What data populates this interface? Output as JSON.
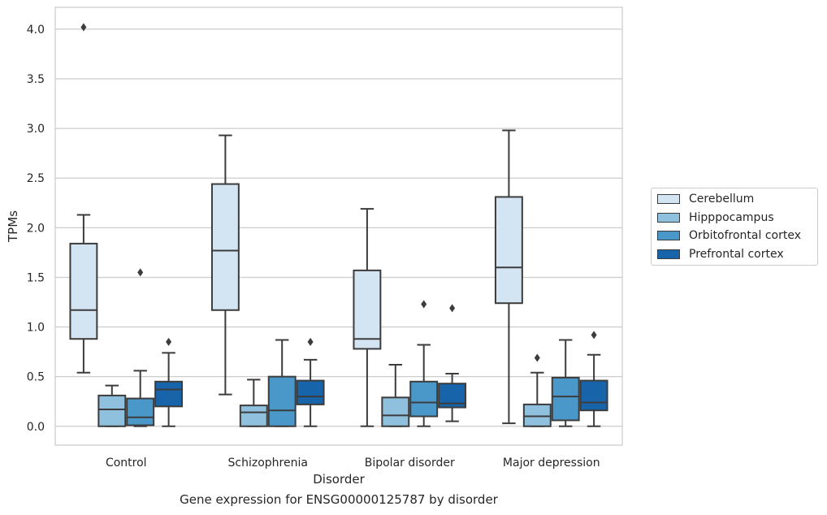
{
  "chart_data": {
    "type": "box",
    "xlabel": "Disorder",
    "ylabel": "TPMs",
    "caption": "Gene expression for ENSG00000125787 by disorder",
    "ylim": [
      -0.19,
      4.22
    ],
    "yticks": [
      "0.0",
      "0.5",
      "1.0",
      "1.5",
      "2.0",
      "2.5",
      "3.0",
      "3.5",
      "4.0"
    ],
    "grid": "horizontal",
    "legend_placement": "right",
    "categories": [
      "Control",
      "Schizophrenia",
      "Bipolar disorder",
      "Major depression"
    ],
    "series": [
      {
        "name": "Cerebellum",
        "color": "#d3e4f3",
        "boxes": [
          {
            "whislo": 0.54,
            "q1": 0.88,
            "med": 1.17,
            "q3": 1.84,
            "whishi": 2.13,
            "fliers": [
              4.02
            ]
          },
          {
            "whislo": 0.32,
            "q1": 1.17,
            "med": 1.77,
            "q3": 2.44,
            "whishi": 2.93,
            "fliers": []
          },
          {
            "whislo": 0.0,
            "q1": 0.78,
            "med": 0.88,
            "q3": 1.57,
            "whishi": 2.19,
            "fliers": []
          },
          {
            "whislo": 0.03,
            "q1": 1.24,
            "med": 1.6,
            "q3": 2.31,
            "whishi": 2.98,
            "fliers": []
          }
        ]
      },
      {
        "name": "Hipppocampus",
        "color": "#8fc1de",
        "boxes": [
          {
            "whislo": 0.0,
            "q1": 0.0,
            "med": 0.17,
            "q3": 0.31,
            "whishi": 0.41,
            "fliers": []
          },
          {
            "whislo": 0.0,
            "q1": 0.0,
            "med": 0.14,
            "q3": 0.21,
            "whishi": 0.47,
            "fliers": []
          },
          {
            "whislo": 0.0,
            "q1": 0.0,
            "med": 0.11,
            "q3": 0.29,
            "whishi": 0.62,
            "fliers": []
          },
          {
            "whislo": 0.0,
            "q1": 0.0,
            "med": 0.1,
            "q3": 0.22,
            "whishi": 0.54,
            "fliers": [
              0.69
            ]
          }
        ]
      },
      {
        "name": "Orbitofrontal cortex",
        "color": "#4a98c9",
        "boxes": [
          {
            "whislo": 0.0,
            "q1": 0.01,
            "med": 0.09,
            "q3": 0.28,
            "whishi": 0.56,
            "fliers": [
              1.55
            ]
          },
          {
            "whislo": 0.0,
            "q1": 0.0,
            "med": 0.16,
            "q3": 0.5,
            "whishi": 0.87,
            "fliers": []
          },
          {
            "whislo": 0.0,
            "q1": 0.1,
            "med": 0.24,
            "q3": 0.45,
            "whishi": 0.82,
            "fliers": [
              1.23
            ]
          },
          {
            "whislo": 0.0,
            "q1": 0.06,
            "med": 0.3,
            "q3": 0.49,
            "whishi": 0.87,
            "fliers": []
          }
        ]
      },
      {
        "name": "Prefrontal cortex",
        "color": "#1764ab",
        "boxes": [
          {
            "whislo": 0.0,
            "q1": 0.2,
            "med": 0.37,
            "q3": 0.45,
            "whishi": 0.74,
            "fliers": [
              0.85
            ]
          },
          {
            "whislo": 0.0,
            "q1": 0.22,
            "med": 0.3,
            "q3": 0.46,
            "whishi": 0.67,
            "fliers": [
              0.85
            ]
          },
          {
            "whislo": 0.05,
            "q1": 0.19,
            "med": 0.23,
            "q3": 0.43,
            "whishi": 0.53,
            "fliers": [
              1.19
            ]
          },
          {
            "whislo": 0.0,
            "q1": 0.16,
            "med": 0.24,
            "q3": 0.46,
            "whishi": 0.72,
            "fliers": [
              0.92
            ]
          }
        ]
      }
    ]
  }
}
